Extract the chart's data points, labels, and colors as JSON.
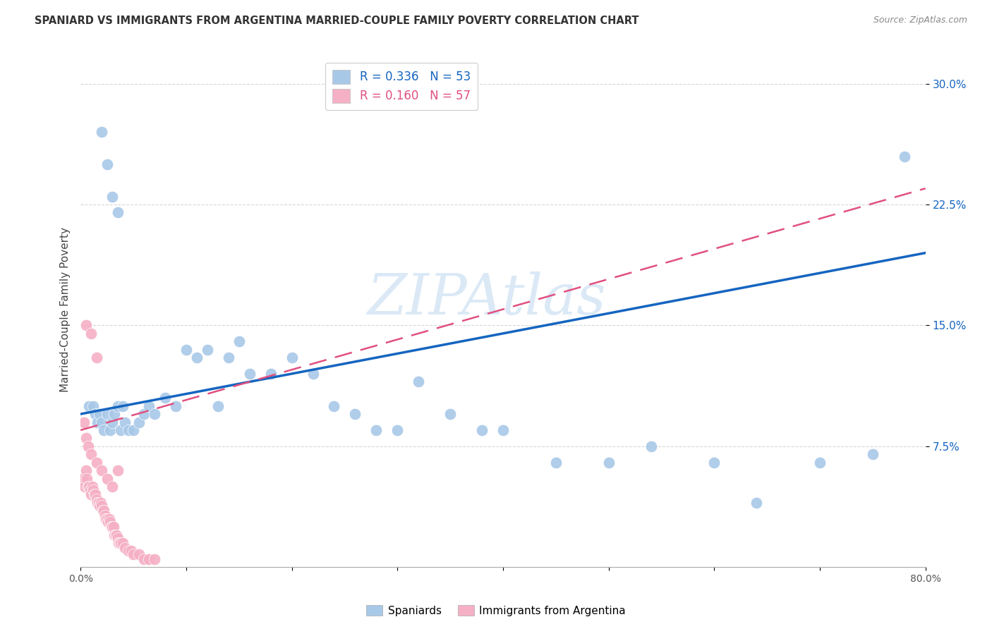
{
  "title": "SPANIARD VS IMMIGRANTS FROM ARGENTINA MARRIED-COUPLE FAMILY POVERTY CORRELATION CHART",
  "source": "Source: ZipAtlas.com",
  "ylabel": "Married-Couple Family Poverty",
  "xlim": [
    0.0,
    0.8
  ],
  "ylim": [
    0.0,
    0.32
  ],
  "xtick_positions": [
    0.0,
    0.1,
    0.2,
    0.3,
    0.4,
    0.5,
    0.6,
    0.7,
    0.8
  ],
  "xticklabels": [
    "0.0%",
    "",
    "",
    "",
    "",
    "",
    "",
    "",
    "80.0%"
  ],
  "yticks": [
    0.075,
    0.15,
    0.225,
    0.3
  ],
  "yticklabels": [
    "7.5%",
    "15.0%",
    "22.5%",
    "30.0%"
  ],
  "spaniards_R": "0.336",
  "spaniards_N": "53",
  "argentina_R": "0.160",
  "argentina_N": "57",
  "spaniard_color": "#a8c8e8",
  "argentina_color": "#f5b0c5",
  "spaniard_line_color": "#1565c0",
  "argentina_line_color": "#e05080",
  "watermark": "ZIPAtlas",
  "legend_label_blue": "Spaniards",
  "legend_label_pink": "Immigrants from Argentina",
  "spaniards_x": [
    0.008,
    0.012,
    0.014,
    0.016,
    0.018,
    0.02,
    0.022,
    0.025,
    0.028,
    0.03,
    0.032,
    0.035,
    0.038,
    0.04,
    0.042,
    0.045,
    0.05,
    0.055,
    0.06,
    0.065,
    0.07,
    0.08,
    0.09,
    0.1,
    0.11,
    0.12,
    0.13,
    0.14,
    0.15,
    0.16,
    0.18,
    0.2,
    0.22,
    0.24,
    0.26,
    0.28,
    0.3,
    0.32,
    0.35,
    0.38,
    0.4,
    0.45,
    0.5,
    0.54,
    0.6,
    0.64,
    0.7,
    0.75,
    0.78,
    0.02,
    0.025,
    0.03,
    0.035
  ],
  "spaniards_y": [
    0.1,
    0.1,
    0.095,
    0.09,
    0.095,
    0.09,
    0.085,
    0.095,
    0.085,
    0.09,
    0.095,
    0.1,
    0.085,
    0.1,
    0.09,
    0.085,
    0.085,
    0.09,
    0.095,
    0.1,
    0.095,
    0.105,
    0.1,
    0.135,
    0.13,
    0.135,
    0.1,
    0.13,
    0.14,
    0.12,
    0.12,
    0.13,
    0.12,
    0.1,
    0.095,
    0.085,
    0.085,
    0.115,
    0.095,
    0.085,
    0.085,
    0.065,
    0.065,
    0.075,
    0.065,
    0.04,
    0.065,
    0.07,
    0.255,
    0.27,
    0.25,
    0.23,
    0.22
  ],
  "argentina_x": [
    0.002,
    0.004,
    0.005,
    0.006,
    0.007,
    0.008,
    0.009,
    0.01,
    0.011,
    0.012,
    0.013,
    0.014,
    0.015,
    0.016,
    0.017,
    0.018,
    0.019,
    0.02,
    0.021,
    0.022,
    0.023,
    0.024,
    0.025,
    0.026,
    0.027,
    0.028,
    0.029,
    0.03,
    0.031,
    0.032,
    0.033,
    0.034,
    0.035,
    0.036,
    0.037,
    0.038,
    0.04,
    0.042,
    0.045,
    0.048,
    0.05,
    0.055,
    0.06,
    0.065,
    0.07,
    0.003,
    0.005,
    0.007,
    0.01,
    0.015,
    0.02,
    0.025,
    0.03,
    0.005,
    0.01,
    0.015,
    0.035
  ],
  "argentina_y": [
    0.055,
    0.05,
    0.06,
    0.055,
    0.05,
    0.05,
    0.048,
    0.045,
    0.05,
    0.048,
    0.045,
    0.045,
    0.042,
    0.04,
    0.04,
    0.038,
    0.04,
    0.038,
    0.035,
    0.035,
    0.032,
    0.03,
    0.03,
    0.028,
    0.03,
    0.028,
    0.025,
    0.025,
    0.025,
    0.02,
    0.02,
    0.02,
    0.018,
    0.015,
    0.015,
    0.015,
    0.015,
    0.012,
    0.01,
    0.01,
    0.008,
    0.008,
    0.005,
    0.005,
    0.005,
    0.09,
    0.08,
    0.075,
    0.07,
    0.065,
    0.06,
    0.055,
    0.05,
    0.15,
    0.145,
    0.13,
    0.06
  ],
  "blue_line_x": [
    0.0,
    0.8
  ],
  "blue_line_y": [
    0.095,
    0.195
  ],
  "pink_line_x": [
    0.0,
    0.8
  ],
  "pink_line_y": [
    0.085,
    0.235
  ]
}
